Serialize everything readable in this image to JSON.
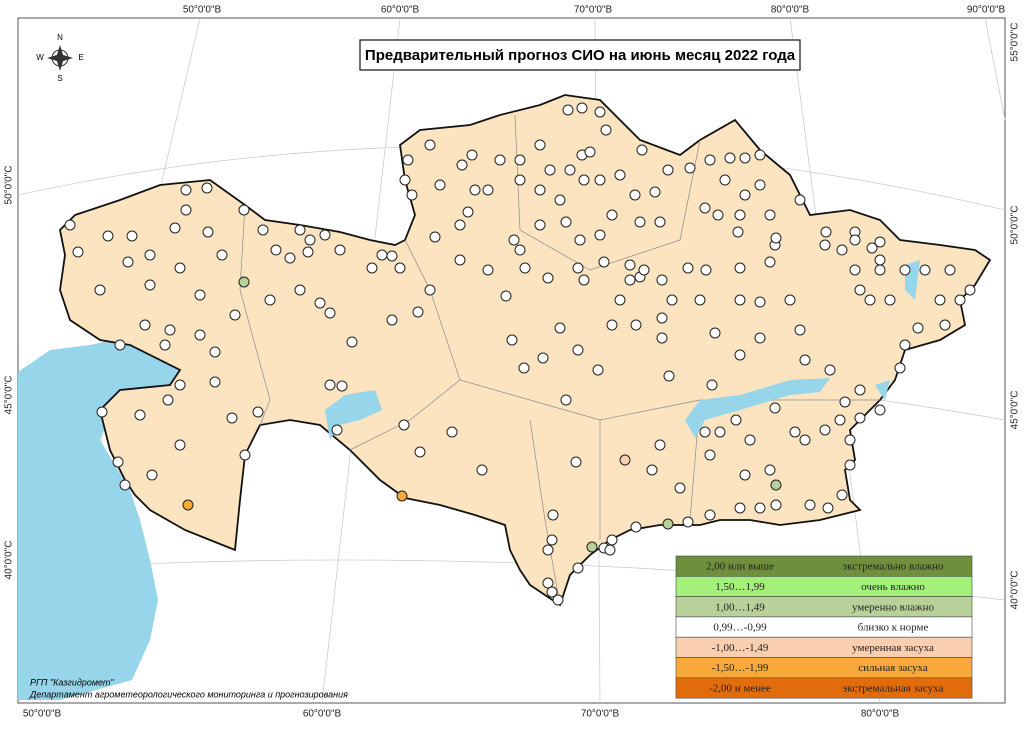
{
  "title": "Предварительный прогноз СИО на июнь месяц 2022 года",
  "coords": {
    "top": [
      "50°0'0\"В",
      "60°0'0\"В",
      "70°0'0\"В",
      "80°0'0\"В",
      "90°0'0\"В"
    ],
    "bottom": [
      "50°0'0\"В",
      "60°0'0\"В",
      "70°0'0\"В",
      "80°0'0\"В"
    ],
    "left": [
      "50°0'0\"С",
      "45°0'0\"С",
      "40°0'0\"С"
    ],
    "right": [
      "55°0'0\"С",
      "50°0'0\"С",
      "45°0'0\"С",
      "40°0'0\"С"
    ]
  },
  "compass": [
    "N",
    "W",
    "E",
    "S"
  ],
  "legend": [
    {
      "range": "2,00 или выше",
      "label": "экстремально влажно",
      "color": "#6f8f3c"
    },
    {
      "range": "1,50…1,99",
      "label": "очень влажно",
      "color": "#a3f07a"
    },
    {
      "range": "1,00…1,49",
      "label": "умеренно влажно",
      "color": "#b8d19a"
    },
    {
      "range": "0,99…-0,99",
      "label": "близко к норме",
      "color": "#ffffff"
    },
    {
      "range": "-1,00…-1,49",
      "label": "умеренная засуха",
      "color": "#f9cfb0"
    },
    {
      "range": "-1,50…-1,99",
      "label": "сильная засуха",
      "color": "#f9a93a"
    },
    {
      "range": "-2,00 и менее",
      "label": "экстремальная засуха",
      "color": "#e36c0a"
    }
  ],
  "credits": [
    "РГП \"Казгидромет\"",
    "Департамент агрометеорологического мониторинга и прогнозирования"
  ]
}
